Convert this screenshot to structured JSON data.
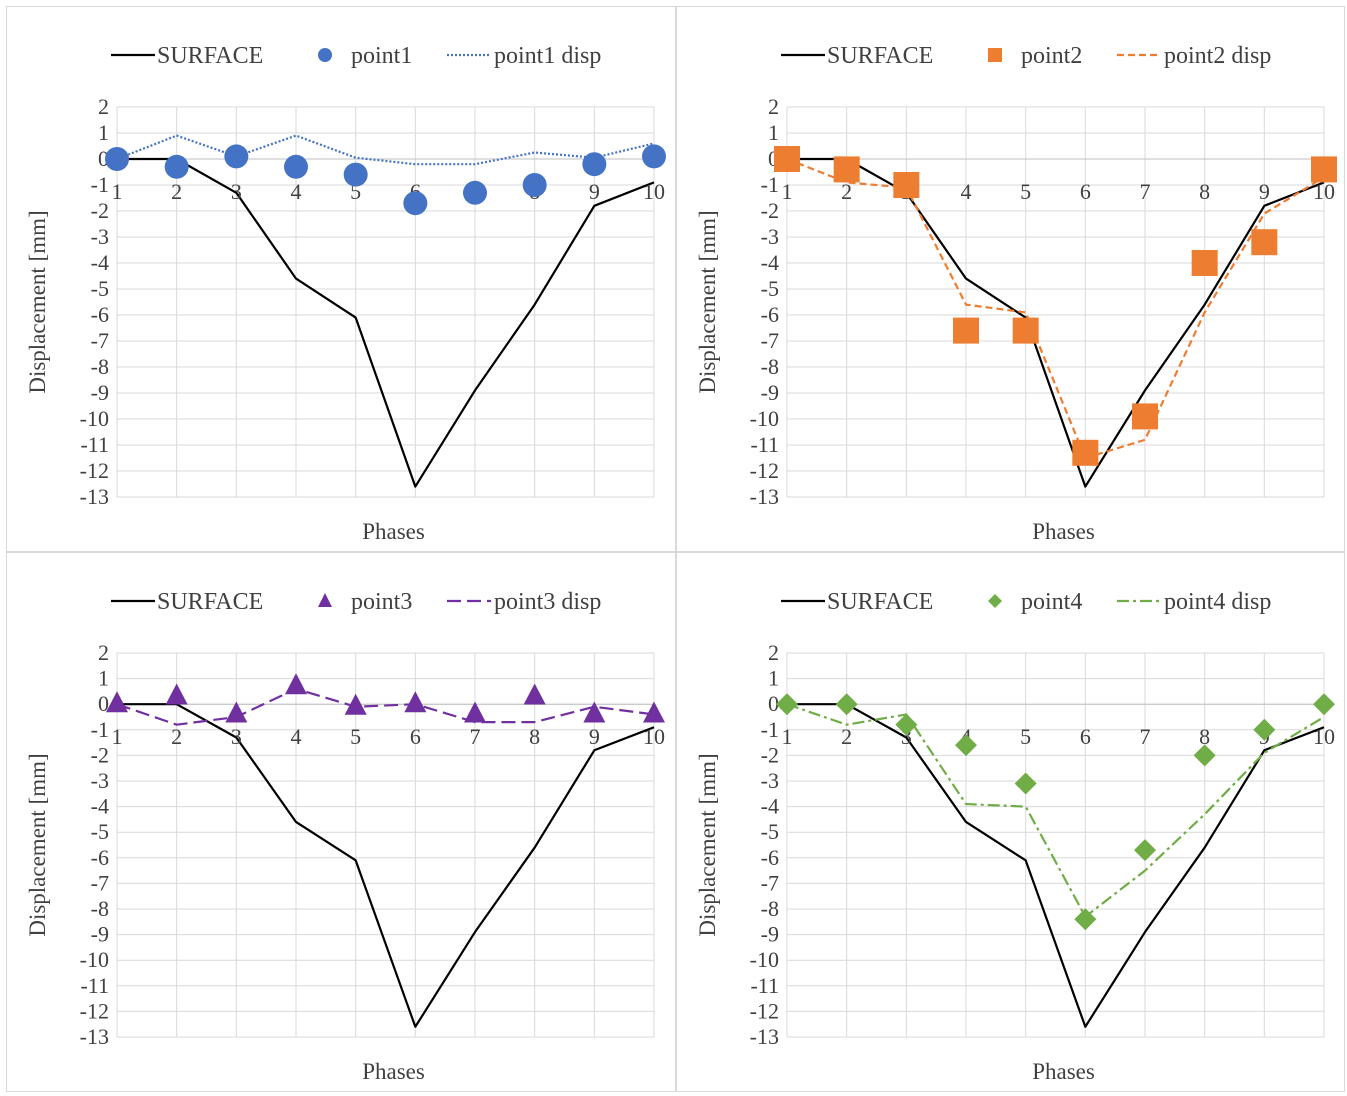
{
  "colors": {
    "surface": "#000000",
    "grid": "#d9d9d9",
    "point1": "#4472c4",
    "point2": "#ed7d31",
    "point3": "#7030a0",
    "point4": "#70ad47",
    "text": "#404040"
  },
  "chart_data": [
    {
      "type": "line",
      "xlabel": "Phases",
      "ylabel": "Displacement [mm]",
      "ylim": [
        -13,
        2
      ],
      "categories": [
        "1",
        "2",
        "3",
        "4",
        "5",
        "6",
        "7",
        "8",
        "9",
        "10"
      ],
      "yticks": [
        "2",
        "1",
        "0",
        "-1",
        "-2",
        "-3",
        "-4",
        "-5",
        "-6",
        "-7",
        "-8",
        "-9",
        "-10",
        "-11",
        "-12",
        "-13"
      ],
      "grid": true,
      "legend": "top",
      "series": [
        {
          "name": "SURFACE",
          "kind": "line",
          "dash": "solid",
          "color": "#000000",
          "values": [
            0,
            0,
            -1.3,
            -4.6,
            -6.1,
            -12.6,
            -8.9,
            -5.6,
            -1.8,
            -0.9
          ]
        },
        {
          "name": "point1",
          "kind": "marker",
          "marker": "circle",
          "color": "#4472c4",
          "values": [
            0,
            -0.3,
            0.1,
            -0.3,
            -0.6,
            -1.7,
            -1.3,
            -1.0,
            -0.2,
            0.1
          ]
        },
        {
          "name": "point1 disp",
          "kind": "line",
          "dash": "dotted",
          "color": "#4472c4",
          "values": [
            0,
            0.9,
            0.1,
            0.9,
            0.05,
            -0.2,
            -0.2,
            0.25,
            0.05,
            0.6
          ]
        }
      ]
    },
    {
      "type": "line",
      "xlabel": "Phases",
      "ylabel": "Displacement [mm]",
      "ylim": [
        -13,
        2
      ],
      "categories": [
        "1",
        "2",
        "3",
        "4",
        "5",
        "6",
        "7",
        "8",
        "9",
        "10"
      ],
      "yticks": [
        "2",
        "1",
        "0",
        "-1",
        "-2",
        "-3",
        "-4",
        "-5",
        "-6",
        "-7",
        "-8",
        "-9",
        "-10",
        "-11",
        "-12",
        "-13"
      ],
      "grid": true,
      "legend": "top",
      "series": [
        {
          "name": "SURFACE",
          "kind": "line",
          "dash": "solid",
          "color": "#000000",
          "values": [
            0,
            0,
            -1.3,
            -4.6,
            -6.1,
            -12.6,
            -8.9,
            -5.6,
            -1.8,
            -0.9
          ]
        },
        {
          "name": "point2",
          "kind": "marker",
          "marker": "square",
          "color": "#ed7d31",
          "values": [
            0,
            -0.4,
            -1.0,
            -6.6,
            -6.6,
            -11.3,
            -9.9,
            -4.0,
            -3.2,
            -0.4
          ]
        },
        {
          "name": "point2 disp",
          "kind": "line",
          "dash": "dashed",
          "color": "#ed7d31",
          "values": [
            0,
            -0.9,
            -1.1,
            -5.6,
            -5.9,
            -11.5,
            -10.8,
            -5.9,
            -2.1,
            -0.7
          ]
        }
      ]
    },
    {
      "type": "line",
      "xlabel": "Phases",
      "ylabel": "Displacement [mm]",
      "ylim": [
        -13,
        2
      ],
      "categories": [
        "1",
        "2",
        "3",
        "4",
        "5",
        "6",
        "7",
        "8",
        "9",
        "10"
      ],
      "yticks": [
        "2",
        "1",
        "0",
        "-1",
        "-2",
        "-3",
        "-4",
        "-5",
        "-6",
        "-7",
        "-8",
        "-9",
        "-10",
        "-11",
        "-12",
        "-13"
      ],
      "grid": true,
      "legend": "top",
      "series": [
        {
          "name": "SURFACE",
          "kind": "line",
          "dash": "solid",
          "color": "#000000",
          "values": [
            0,
            0,
            -1.3,
            -4.6,
            -6.1,
            -12.6,
            -8.9,
            -5.6,
            -1.8,
            -0.9
          ]
        },
        {
          "name": "point3",
          "kind": "marker",
          "marker": "triangle",
          "color": "#7030a0",
          "values": [
            0,
            0.3,
            -0.4,
            0.7,
            -0.1,
            0,
            -0.4,
            0.3,
            -0.4,
            -0.4
          ]
        },
        {
          "name": "point3 disp",
          "kind": "line",
          "dash": "longdash",
          "color": "#7030a0",
          "values": [
            0,
            -0.8,
            -0.5,
            0.6,
            -0.1,
            0,
            -0.7,
            -0.7,
            -0.1,
            -0.4
          ]
        }
      ]
    },
    {
      "type": "line",
      "xlabel": "Phases",
      "ylabel": "Displacement [mm]",
      "ylim": [
        -13,
        2
      ],
      "categories": [
        "1",
        "2",
        "3",
        "4",
        "5",
        "6",
        "7",
        "8",
        "9",
        "10"
      ],
      "yticks": [
        "2",
        "1",
        "0",
        "-1",
        "-2",
        "-3",
        "-4",
        "-5",
        "-6",
        "-7",
        "-8",
        "-9",
        "-10",
        "-11",
        "-12",
        "-13"
      ],
      "grid": true,
      "legend": "top",
      "series": [
        {
          "name": "SURFACE",
          "kind": "line",
          "dash": "solid",
          "color": "#000000",
          "values": [
            0,
            0,
            -1.3,
            -4.6,
            -6.1,
            -12.6,
            -8.9,
            -5.6,
            -1.8,
            -0.9
          ]
        },
        {
          "name": "point4",
          "kind": "marker",
          "marker": "diamond",
          "color": "#70ad47",
          "values": [
            0,
            0,
            -0.8,
            -1.6,
            -3.1,
            -8.4,
            -5.7,
            -2.0,
            -1.0,
            0
          ]
        },
        {
          "name": "point4 disp",
          "kind": "line",
          "dash": "dashdot",
          "color": "#70ad47",
          "values": [
            0,
            -0.8,
            -0.4,
            -3.9,
            -4.0,
            -8.3,
            -6.5,
            -4.3,
            -1.9,
            -0.5
          ]
        }
      ]
    }
  ]
}
